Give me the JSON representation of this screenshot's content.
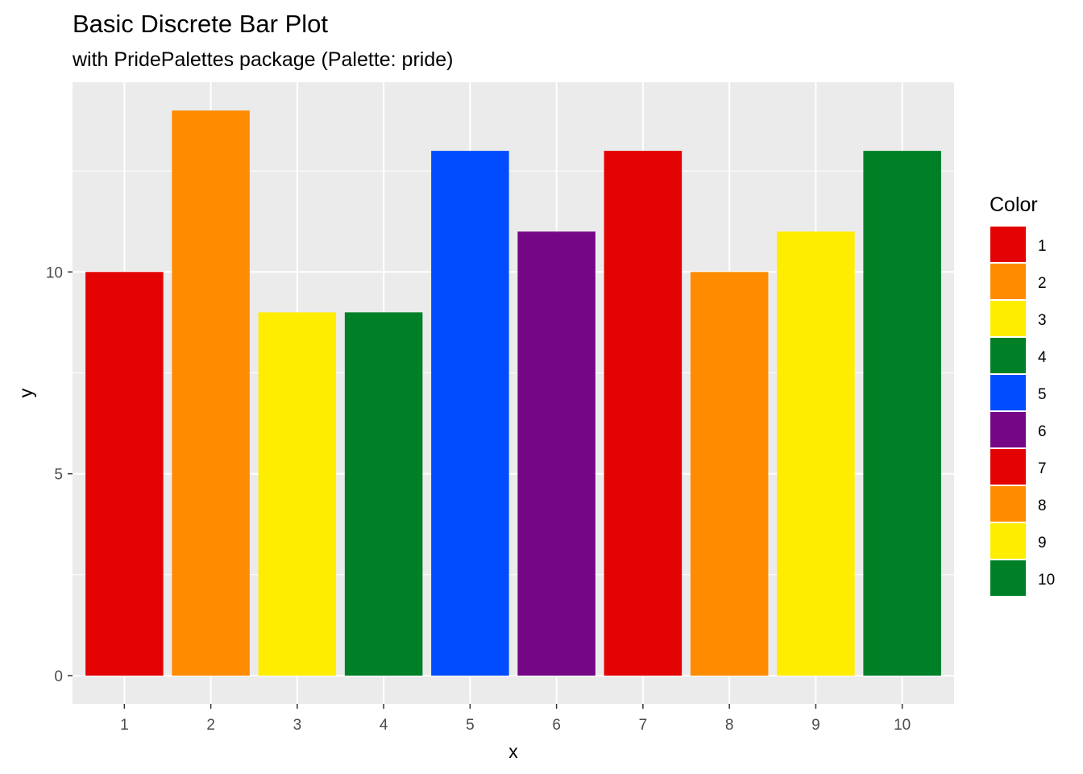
{
  "chart_data": {
    "type": "bar",
    "title": "Basic Discrete Bar Plot",
    "subtitle": "with PridePalettes package (Palette: pride)",
    "xlabel": "x",
    "ylabel": "y",
    "categories": [
      "1",
      "2",
      "3",
      "4",
      "5",
      "6",
      "7",
      "8",
      "9",
      "10"
    ],
    "values": [
      10,
      14,
      9,
      9,
      13,
      11,
      13,
      10,
      11,
      13
    ],
    "colors": [
      "#E40303",
      "#FF8C00",
      "#FFED00",
      "#008026",
      "#004DFF",
      "#750787",
      "#E40303",
      "#FF8C00",
      "#FFED00",
      "#008026"
    ],
    "ylim": [
      -0.7,
      14.7
    ],
    "yticks": [
      0,
      5,
      10
    ],
    "grid": true,
    "panel_background": "#EBEBEB",
    "legend": {
      "title": "Color",
      "position": "right",
      "labels": [
        "1",
        "2",
        "3",
        "4",
        "5",
        "6",
        "7",
        "8",
        "9",
        "10"
      ]
    }
  }
}
